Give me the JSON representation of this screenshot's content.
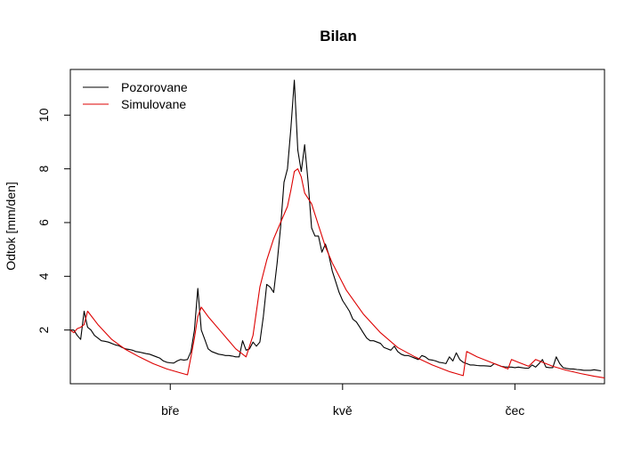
{
  "chart_data": {
    "type": "line",
    "title": "Bilan",
    "xlabel": "",
    "ylabel": "Odtok [mm/den]",
    "x_range_days": [
      0,
      155
    ],
    "ylim": [
      0,
      11.7
    ],
    "x_ticks": [
      {
        "day": 29,
        "label": "bře"
      },
      {
        "day": 79,
        "label": "kvě"
      },
      {
        "day": 129,
        "label": "čec"
      }
    ],
    "y_ticks": [
      2,
      4,
      6,
      8,
      10
    ],
    "legend": {
      "position": "top-left",
      "entries": [
        "Pozorovane",
        "Simulovane"
      ]
    },
    "series": [
      {
        "name": "Pozorovane",
        "color": "#000000",
        "points": [
          [
            0,
            2.0
          ],
          [
            1,
            2.0
          ],
          [
            2,
            1.8
          ],
          [
            3,
            1.65
          ],
          [
            4,
            2.7
          ],
          [
            5,
            2.1
          ],
          [
            6,
            2.0
          ],
          [
            7,
            1.8
          ],
          [
            8,
            1.7
          ],
          [
            9,
            1.6
          ],
          [
            10,
            1.58
          ],
          [
            11,
            1.55
          ],
          [
            12,
            1.5
          ],
          [
            13,
            1.45
          ],
          [
            14,
            1.42
          ],
          [
            15,
            1.35
          ],
          [
            16,
            1.3
          ],
          [
            17,
            1.28
          ],
          [
            18,
            1.25
          ],
          [
            19,
            1.2
          ],
          [
            20,
            1.18
          ],
          [
            21,
            1.15
          ],
          [
            22,
            1.12
          ],
          [
            23,
            1.1
          ],
          [
            24,
            1.05
          ],
          [
            25,
            1.0
          ],
          [
            26,
            0.95
          ],
          [
            27,
            0.85
          ],
          [
            28,
            0.8
          ],
          [
            29,
            0.78
          ],
          [
            30,
            0.77
          ],
          [
            31,
            0.85
          ],
          [
            32,
            0.9
          ],
          [
            33,
            0.88
          ],
          [
            34,
            0.9
          ],
          [
            35,
            1.2
          ],
          [
            36,
            2.0
          ],
          [
            37,
            3.55
          ],
          [
            38,
            2.0
          ],
          [
            39,
            1.65
          ],
          [
            40,
            1.3
          ],
          [
            41,
            1.2
          ],
          [
            42,
            1.15
          ],
          [
            43,
            1.1
          ],
          [
            44,
            1.08
          ],
          [
            45,
            1.05
          ],
          [
            46,
            1.05
          ],
          [
            47,
            1.03
          ],
          [
            48,
            1.0
          ],
          [
            49,
            1.0
          ],
          [
            50,
            1.6
          ],
          [
            51,
            1.25
          ],
          [
            52,
            1.3
          ],
          [
            53,
            1.55
          ],
          [
            54,
            1.4
          ],
          [
            55,
            1.55
          ],
          [
            56,
            2.5
          ],
          [
            57,
            3.7
          ],
          [
            58,
            3.6
          ],
          [
            59,
            3.4
          ],
          [
            60,
            4.5
          ],
          [
            61,
            5.8
          ],
          [
            62,
            7.5
          ],
          [
            63,
            8.0
          ],
          [
            64,
            9.5
          ],
          [
            65,
            11.3
          ],
          [
            66,
            8.7
          ],
          [
            67,
            7.9
          ],
          [
            68,
            8.9
          ],
          [
            69,
            7.5
          ],
          [
            70,
            5.8
          ],
          [
            71,
            5.5
          ],
          [
            72,
            5.5
          ],
          [
            73,
            4.9
          ],
          [
            74,
            5.2
          ],
          [
            75,
            4.8
          ],
          [
            76,
            4.2
          ],
          [
            77,
            3.8
          ],
          [
            78,
            3.4
          ],
          [
            79,
            3.1
          ],
          [
            80,
            2.9
          ],
          [
            81,
            2.7
          ],
          [
            82,
            2.4
          ],
          [
            83,
            2.3
          ],
          [
            84,
            2.1
          ],
          [
            85,
            1.9
          ],
          [
            86,
            1.7
          ],
          [
            87,
            1.6
          ],
          [
            88,
            1.6
          ],
          [
            89,
            1.55
          ],
          [
            90,
            1.5
          ],
          [
            91,
            1.35
          ],
          [
            92,
            1.3
          ],
          [
            93,
            1.25
          ],
          [
            94,
            1.4
          ],
          [
            95,
            1.2
          ],
          [
            96,
            1.1
          ],
          [
            97,
            1.05
          ],
          [
            98,
            1.05
          ],
          [
            99,
            1.0
          ],
          [
            100,
            0.95
          ],
          [
            101,
            0.9
          ],
          [
            102,
            1.05
          ],
          [
            103,
            1.0
          ],
          [
            104,
            0.9
          ],
          [
            105,
            0.88
          ],
          [
            106,
            0.85
          ],
          [
            107,
            0.8
          ],
          [
            108,
            0.78
          ],
          [
            109,
            0.75
          ],
          [
            110,
            1.0
          ],
          [
            111,
            0.85
          ],
          [
            112,
            1.15
          ],
          [
            113,
            0.9
          ],
          [
            114,
            0.8
          ],
          [
            115,
            0.75
          ],
          [
            116,
            0.7
          ],
          [
            117,
            0.7
          ],
          [
            118,
            0.68
          ],
          [
            119,
            0.67
          ],
          [
            120,
            0.67
          ],
          [
            121,
            0.66
          ],
          [
            122,
            0.65
          ],
          [
            123,
            0.75
          ],
          [
            124,
            0.7
          ],
          [
            125,
            0.65
          ],
          [
            126,
            0.63
          ],
          [
            127,
            0.62
          ],
          [
            128,
            0.62
          ],
          [
            129,
            0.6
          ],
          [
            130,
            0.62
          ],
          [
            131,
            0.6
          ],
          [
            132,
            0.58
          ],
          [
            133,
            0.58
          ],
          [
            134,
            0.7
          ],
          [
            135,
            0.62
          ],
          [
            136,
            0.75
          ],
          [
            137,
            0.9
          ],
          [
            138,
            0.62
          ],
          [
            139,
            0.6
          ],
          [
            140,
            0.6
          ],
          [
            141,
            1.0
          ],
          [
            142,
            0.75
          ],
          [
            143,
            0.6
          ],
          [
            144,
            0.57
          ],
          [
            145,
            0.55
          ],
          [
            146,
            0.55
          ],
          [
            147,
            0.53
          ],
          [
            148,
            0.52
          ],
          [
            149,
            0.5
          ],
          [
            150,
            0.5
          ],
          [
            151,
            0.5
          ],
          [
            152,
            0.52
          ],
          [
            153,
            0.5
          ],
          [
            154,
            0.48
          ]
        ]
      },
      {
        "name": "Simulovane",
        "color": "#dd0000",
        "points": [
          [
            0,
            2.0
          ],
          [
            1,
            1.9
          ],
          [
            2,
            2.05
          ],
          [
            3,
            2.1
          ],
          [
            4,
            2.2
          ],
          [
            5,
            2.7
          ],
          [
            8,
            2.2
          ],
          [
            12,
            1.65
          ],
          [
            16,
            1.28
          ],
          [
            20,
            1.0
          ],
          [
            24,
            0.75
          ],
          [
            28,
            0.55
          ],
          [
            32,
            0.4
          ],
          [
            34,
            0.33
          ],
          [
            35,
            1.0
          ],
          [
            36,
            1.7
          ],
          [
            37,
            2.5
          ],
          [
            38,
            2.85
          ],
          [
            40,
            2.5
          ],
          [
            44,
            1.9
          ],
          [
            48,
            1.3
          ],
          [
            51,
            1.0
          ],
          [
            53,
            1.8
          ],
          [
            55,
            3.6
          ],
          [
            57,
            4.6
          ],
          [
            59,
            5.4
          ],
          [
            61,
            6.0
          ],
          [
            63,
            6.6
          ],
          [
            64,
            7.2
          ],
          [
            65,
            7.9
          ],
          [
            66,
            8.0
          ],
          [
            67,
            7.7
          ],
          [
            68,
            7.1
          ],
          [
            70,
            6.7
          ],
          [
            72,
            5.9
          ],
          [
            74,
            5.1
          ],
          [
            76,
            4.5
          ],
          [
            80,
            3.5
          ],
          [
            85,
            2.6
          ],
          [
            90,
            1.9
          ],
          [
            95,
            1.35
          ],
          [
            100,
            1.0
          ],
          [
            105,
            0.7
          ],
          [
            110,
            0.45
          ],
          [
            114,
            0.3
          ],
          [
            115,
            1.2
          ],
          [
            118,
            1.0
          ],
          [
            122,
            0.8
          ],
          [
            126,
            0.6
          ],
          [
            127,
            0.55
          ],
          [
            128,
            0.9
          ],
          [
            130,
            0.8
          ],
          [
            133,
            0.65
          ],
          [
            135,
            0.9
          ],
          [
            137,
            0.8
          ],
          [
            140,
            0.65
          ],
          [
            144,
            0.5
          ],
          [
            148,
            0.38
          ],
          [
            152,
            0.28
          ],
          [
            155,
            0.22
          ]
        ]
      }
    ]
  }
}
